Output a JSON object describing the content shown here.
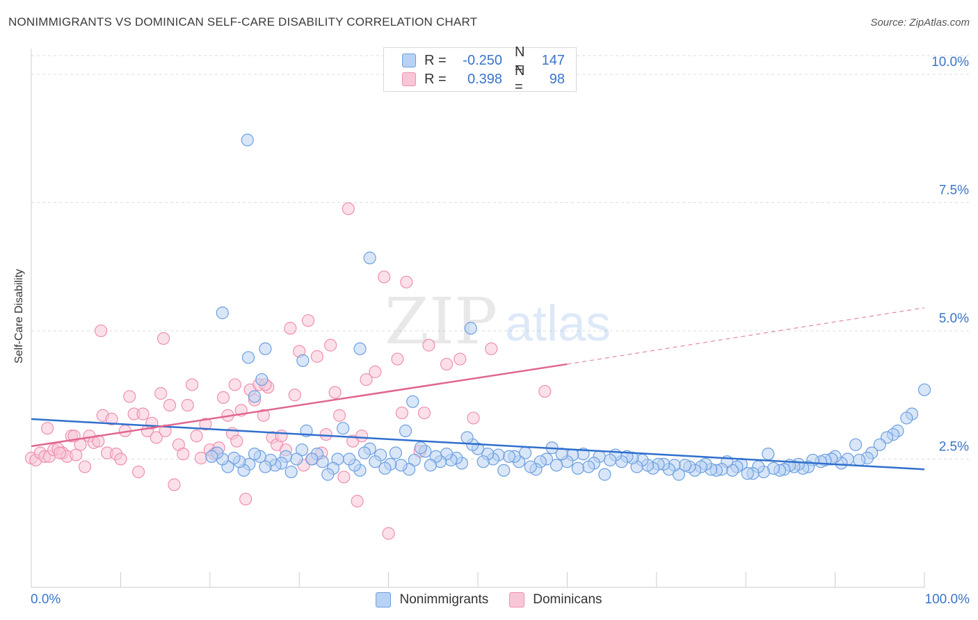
{
  "header": {
    "title": "NONIMMIGRANTS VS DOMINICAN SELF-CARE DISABILITY CORRELATION CHART",
    "source": "Source: ZipAtlas.com"
  },
  "legend_top": {
    "rows": [
      {
        "r_label": "R =",
        "r_value": "-0.250",
        "n_label": "N =",
        "n_value": "147"
      },
      {
        "r_label": "R =",
        "r_value": "0.398",
        "n_label": "N =",
        "n_value": "98"
      }
    ]
  },
  "watermark": {
    "zip": "ZIP",
    "atlas": "atlas"
  },
  "colors": {
    "blue": "#6a9fe0",
    "blue_fill": "#b9d2f3",
    "blue_line": "#2f6fcd",
    "pink": "#ee8fb0",
    "pink_fill": "#f8c7d7",
    "pink_line": "#e0668f",
    "axis_text": "#3a74c8"
  },
  "chart_data": {
    "type": "scatter",
    "title": "NONIMMIGRANTS VS DOMINICAN SELF-CARE DISABILITY CORRELATION CHART",
    "xlabel": "",
    "ylabel": "Self-Care Disability",
    "xlim": [
      0,
      100
    ],
    "ylim": [
      0,
      10.5
    ],
    "x_tick_labels": [
      "0.0%",
      "100.0%"
    ],
    "y_ticks": [
      2.5,
      5.0,
      7.5,
      10.0
    ],
    "y_tick_labels": [
      "2.5%",
      "5.0%",
      "7.5%",
      "10.0%"
    ],
    "grid": true,
    "legend_position": "bottom",
    "series": [
      {
        "name": "Nonimmigrants",
        "trend": {
          "x0": 0,
          "y0": 3.28,
          "x1": 100,
          "y1": 2.3
        },
        "points": [
          [
            24.2,
            8.72
          ],
          [
            37.9,
            6.42
          ],
          [
            21.4,
            5.35
          ],
          [
            49.2,
            5.05
          ],
          [
            24.3,
            4.48
          ],
          [
            26.2,
            4.65
          ],
          [
            36.8,
            4.65
          ],
          [
            30.4,
            4.42
          ],
          [
            25.8,
            4.05
          ],
          [
            25.0,
            3.72
          ],
          [
            42.7,
            3.62
          ],
          [
            100.0,
            3.85
          ],
          [
            98.6,
            3.38
          ],
          [
            98.0,
            3.3
          ],
          [
            97.0,
            3.05
          ],
          [
            96.5,
            2.98
          ],
          [
            95.8,
            2.92
          ],
          [
            95.0,
            2.78
          ],
          [
            94.1,
            2.62
          ],
          [
            93.6,
            2.52
          ],
          [
            92.7,
            2.48
          ],
          [
            92.3,
            2.78
          ],
          [
            91.4,
            2.5
          ],
          [
            90.7,
            2.42
          ],
          [
            90.0,
            2.55
          ],
          [
            89.6,
            2.5
          ],
          [
            88.9,
            2.48
          ],
          [
            88.4,
            2.45
          ],
          [
            87.5,
            2.48
          ],
          [
            87.0,
            2.35
          ],
          [
            86.4,
            2.32
          ],
          [
            85.9,
            2.4
          ],
          [
            85.4,
            2.35
          ],
          [
            84.9,
            2.38
          ],
          [
            84.3,
            2.3
          ],
          [
            83.8,
            2.28
          ],
          [
            83.1,
            2.32
          ],
          [
            82.5,
            2.6
          ],
          [
            82.0,
            2.25
          ],
          [
            81.4,
            2.35
          ],
          [
            80.8,
            2.22
          ],
          [
            80.2,
            2.22
          ],
          [
            79.5,
            2.4
          ],
          [
            79.0,
            2.35
          ],
          [
            78.5,
            2.28
          ],
          [
            77.9,
            2.45
          ],
          [
            77.3,
            2.3
          ],
          [
            76.7,
            2.28
          ],
          [
            76.1,
            2.3
          ],
          [
            75.5,
            2.4
          ],
          [
            75.0,
            2.35
          ],
          [
            74.3,
            2.28
          ],
          [
            73.7,
            2.35
          ],
          [
            73.2,
            2.38
          ],
          [
            72.5,
            2.2
          ],
          [
            72.0,
            2.38
          ],
          [
            71.4,
            2.3
          ],
          [
            70.8,
            2.4
          ],
          [
            70.2,
            2.4
          ],
          [
            69.6,
            2.32
          ],
          [
            69.0,
            2.38
          ],
          [
            68.4,
            2.48
          ],
          [
            67.8,
            2.35
          ],
          [
            67.3,
            2.52
          ],
          [
            66.7,
            2.55
          ],
          [
            66.1,
            2.45
          ],
          [
            65.4,
            2.58
          ],
          [
            64.8,
            2.48
          ],
          [
            64.2,
            2.2
          ],
          [
            63.6,
            2.55
          ],
          [
            63.0,
            2.42
          ],
          [
            62.4,
            2.35
          ],
          [
            61.8,
            2.6
          ],
          [
            61.2,
            2.32
          ],
          [
            60.6,
            2.58
          ],
          [
            60.0,
            2.45
          ],
          [
            59.4,
            2.6
          ],
          [
            58.8,
            2.38
          ],
          [
            58.3,
            2.72
          ],
          [
            57.7,
            2.5
          ],
          [
            57.0,
            2.45
          ],
          [
            56.5,
            2.3
          ],
          [
            55.9,
            2.35
          ],
          [
            55.3,
            2.62
          ],
          [
            54.6,
            2.45
          ],
          [
            54.1,
            2.55
          ],
          [
            53.5,
            2.55
          ],
          [
            52.9,
            2.28
          ],
          [
            52.3,
            2.58
          ],
          [
            51.7,
            2.5
          ],
          [
            51.1,
            2.6
          ],
          [
            50.6,
            2.45
          ],
          [
            50.0,
            2.7
          ],
          [
            49.4,
            2.78
          ],
          [
            48.8,
            2.92
          ],
          [
            48.2,
            2.42
          ],
          [
            47.6,
            2.52
          ],
          [
            47.0,
            2.48
          ],
          [
            46.5,
            2.6
          ],
          [
            45.8,
            2.45
          ],
          [
            45.3,
            2.55
          ],
          [
            44.7,
            2.38
          ],
          [
            44.1,
            2.65
          ],
          [
            43.6,
            2.72
          ],
          [
            42.9,
            2.48
          ],
          [
            42.3,
            2.3
          ],
          [
            41.9,
            3.05
          ],
          [
            41.4,
            2.38
          ],
          [
            40.8,
            2.62
          ],
          [
            40.2,
            2.4
          ],
          [
            39.6,
            2.32
          ],
          [
            39.1,
            2.58
          ],
          [
            38.5,
            2.45
          ],
          [
            37.9,
            2.7
          ],
          [
            37.3,
            2.62
          ],
          [
            36.8,
            2.28
          ],
          [
            36.2,
            2.38
          ],
          [
            35.6,
            2.5
          ],
          [
            34.9,
            3.1
          ],
          [
            34.3,
            2.5
          ],
          [
            33.8,
            2.32
          ],
          [
            33.2,
            2.2
          ],
          [
            32.6,
            2.45
          ],
          [
            32.0,
            2.6
          ],
          [
            31.4,
            2.5
          ],
          [
            30.8,
            3.05
          ],
          [
            30.3,
            2.68
          ],
          [
            29.7,
            2.5
          ],
          [
            29.1,
            2.25
          ],
          [
            28.5,
            2.55
          ],
          [
            28.0,
            2.42
          ],
          [
            27.3,
            2.38
          ],
          [
            26.8,
            2.48
          ],
          [
            26.2,
            2.35
          ],
          [
            25.6,
            2.55
          ],
          [
            25.0,
            2.6
          ],
          [
            24.4,
            2.4
          ],
          [
            23.8,
            2.28
          ],
          [
            23.3,
            2.45
          ],
          [
            22.7,
            2.52
          ],
          [
            22.0,
            2.35
          ],
          [
            21.4,
            2.5
          ],
          [
            20.8,
            2.62
          ],
          [
            20.2,
            2.55
          ]
        ]
      },
      {
        "name": "Dominicans",
        "trend": {
          "x0": 0,
          "y0": 2.75,
          "x1": 60,
          "y1": 4.35,
          "dash_x1": 100,
          "dash_y1": 5.45
        },
        "points": [
          [
            0.0,
            2.52
          ],
          [
            0.5,
            2.48
          ],
          [
            1.0,
            2.62
          ],
          [
            1.5,
            2.55
          ],
          [
            2.0,
            2.55
          ],
          [
            2.5,
            2.68
          ],
          [
            3.0,
            2.7
          ],
          [
            3.5,
            2.62
          ],
          [
            4.0,
            2.55
          ],
          [
            4.5,
            2.95
          ],
          [
            5.0,
            2.58
          ],
          [
            5.5,
            2.78
          ],
          [
            6.0,
            2.35
          ],
          [
            6.5,
            2.95
          ],
          [
            7.0,
            2.82
          ],
          [
            7.5,
            2.85
          ],
          [
            8.0,
            3.35
          ],
          [
            8.5,
            2.62
          ],
          [
            9.0,
            3.28
          ],
          [
            9.5,
            2.6
          ],
          [
            10.0,
            2.5
          ],
          [
            10.5,
            3.05
          ],
          [
            11.0,
            3.72
          ],
          [
            11.5,
            3.38
          ],
          [
            12.0,
            2.25
          ],
          [
            12.5,
            3.38
          ],
          [
            13.0,
            3.05
          ],
          [
            13.5,
            3.2
          ],
          [
            14.0,
            2.92
          ],
          [
            14.5,
            3.78
          ],
          [
            15.0,
            3.05
          ],
          [
            15.5,
            3.55
          ],
          [
            16.0,
            2.0
          ],
          [
            16.5,
            2.78
          ],
          [
            17.0,
            2.6
          ],
          [
            17.5,
            3.55
          ],
          [
            18.0,
            3.95
          ],
          [
            18.5,
            2.95
          ],
          [
            19.0,
            2.52
          ],
          [
            19.5,
            3.18
          ],
          [
            20.0,
            2.68
          ],
          [
            20.5,
            2.6
          ],
          [
            21.0,
            2.72
          ],
          [
            21.5,
            3.7
          ],
          [
            22.0,
            3.35
          ],
          [
            22.5,
            3.0
          ],
          [
            23.0,
            2.85
          ],
          [
            23.5,
            3.45
          ],
          [
            24.0,
            1.72
          ],
          [
            24.5,
            3.85
          ],
          [
            25.0,
            3.65
          ],
          [
            25.5,
            3.95
          ],
          [
            26.0,
            3.35
          ],
          [
            26.5,
            3.9
          ],
          [
            27.0,
            2.92
          ],
          [
            27.5,
            2.78
          ],
          [
            28.0,
            2.95
          ],
          [
            28.5,
            2.68
          ],
          [
            29.0,
            5.05
          ],
          [
            29.5,
            3.75
          ],
          [
            30.0,
            4.6
          ],
          [
            30.5,
            2.38
          ],
          [
            31.0,
            5.2
          ],
          [
            31.5,
            2.5
          ],
          [
            32.0,
            4.5
          ],
          [
            32.5,
            2.62
          ],
          [
            33.0,
            2.98
          ],
          [
            33.5,
            4.72
          ],
          [
            34.0,
            3.8
          ],
          [
            34.5,
            3.35
          ],
          [
            35.0,
            2.15
          ],
          [
            35.5,
            7.38
          ],
          [
            36.0,
            2.85
          ],
          [
            36.5,
            1.68
          ],
          [
            37.0,
            2.95
          ],
          [
            37.5,
            4.05
          ],
          [
            38.5,
            4.2
          ],
          [
            39.5,
            6.05
          ],
          [
            40.0,
            1.05
          ],
          [
            41.0,
            4.45
          ],
          [
            41.5,
            3.4
          ],
          [
            42.0,
            5.95
          ],
          [
            43.5,
            2.65
          ],
          [
            44.0,
            3.4
          ],
          [
            44.5,
            4.72
          ],
          [
            46.5,
            4.35
          ],
          [
            48.0,
            4.45
          ],
          [
            49.5,
            3.3
          ],
          [
            51.5,
            4.65
          ],
          [
            57.5,
            3.82
          ],
          [
            1.8,
            3.1
          ],
          [
            3.2,
            2.62
          ],
          [
            4.8,
            2.95
          ],
          [
            7.8,
            5.0
          ],
          [
            14.8,
            4.85
          ],
          [
            22.8,
            3.95
          ],
          [
            26.2,
            3.95
          ]
        ]
      }
    ]
  }
}
